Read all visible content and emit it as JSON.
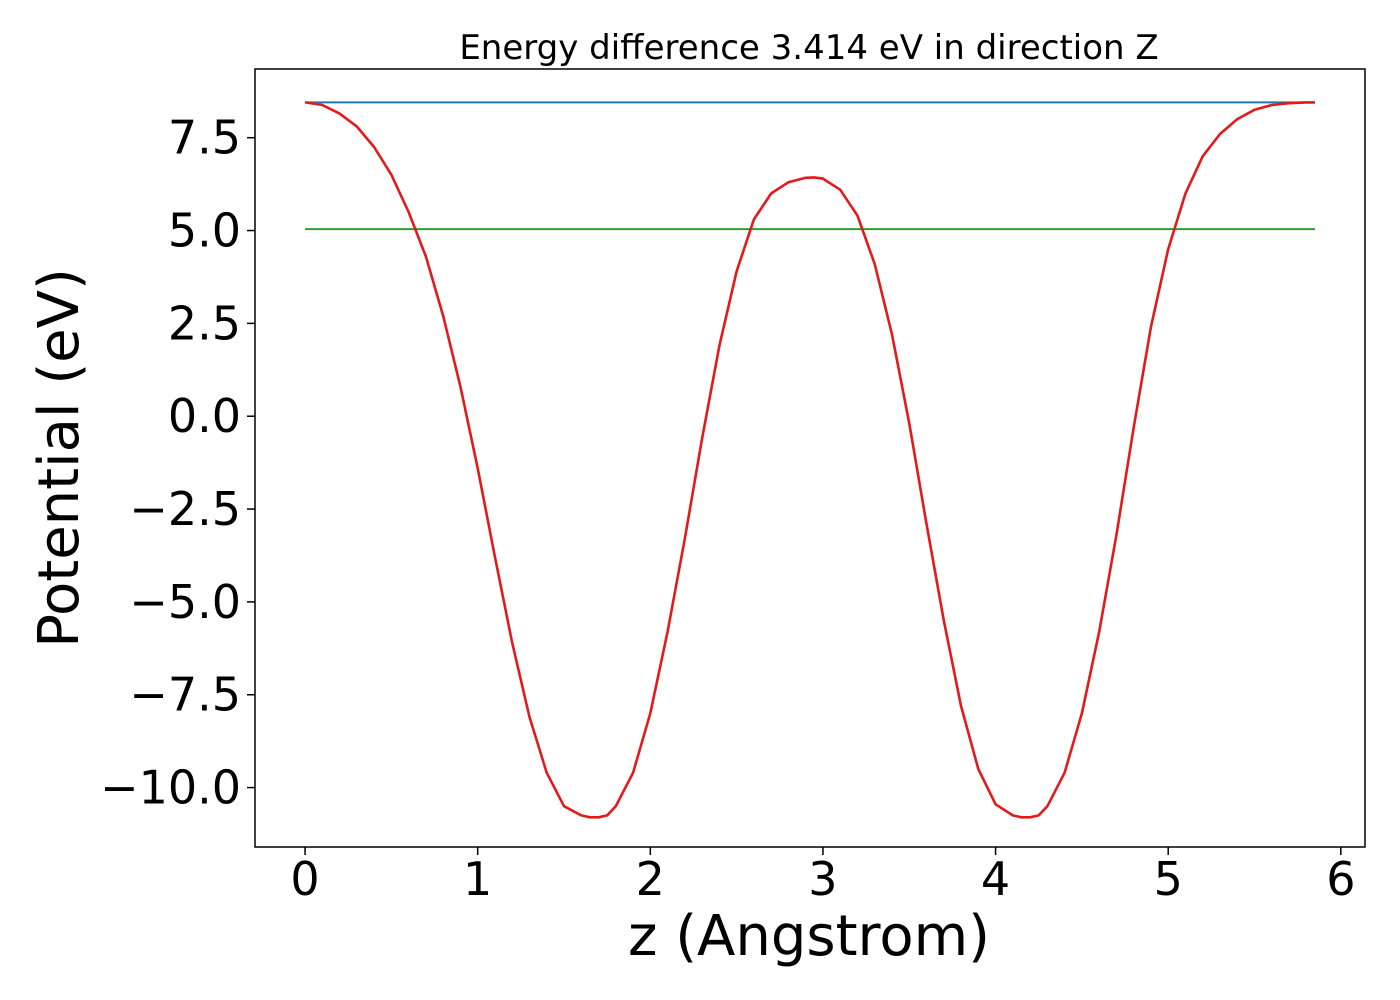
{
  "chart_data": {
    "type": "line",
    "title": "Energy difference 3.414 eV in direction Z",
    "xlabel": "z (Angstrom)",
    "ylabel": "Potential (eV)",
    "xlim": [
      -0.29,
      6.14
    ],
    "ylim": [
      -11.6,
      9.35
    ],
    "xticks": [
      0,
      1,
      2,
      3,
      4,
      5,
      6
    ],
    "xtick_labels": [
      "0",
      "1",
      "2",
      "3",
      "4",
      "5",
      "6"
    ],
    "yticks": [
      -10.0,
      -7.5,
      -5.0,
      -2.5,
      0.0,
      2.5,
      5.0,
      7.5
    ],
    "ytick_labels": [
      "−10.0",
      "−7.5",
      "−5.0",
      "−2.5",
      "0.0",
      "2.5",
      "5.0",
      "7.5"
    ],
    "grid": false,
    "series": [
      {
        "color": "#1f77b4",
        "x": [
          0.0,
          5.85
        ],
        "y": [
          8.45,
          8.45
        ]
      },
      {
        "color": "#2ca02c",
        "x": [
          0.0,
          5.85
        ],
        "y": [
          5.04,
          5.04
        ]
      },
      {
        "color": "#e31a1c",
        "x": [
          0.0,
          0.1,
          0.2,
          0.3,
          0.4,
          0.5,
          0.6,
          0.7,
          0.8,
          0.9,
          1.0,
          1.1,
          1.2,
          1.3,
          1.4,
          1.5,
          1.6,
          1.65,
          1.7,
          1.75,
          1.8,
          1.9,
          2.0,
          2.1,
          2.2,
          2.3,
          2.4,
          2.5,
          2.6,
          2.7,
          2.8,
          2.9,
          2.95,
          3.0,
          3.1,
          3.2,
          3.3,
          3.4,
          3.5,
          3.6,
          3.7,
          3.8,
          3.9,
          4.0,
          4.1,
          4.15,
          4.2,
          4.25,
          4.3,
          4.4,
          4.5,
          4.6,
          4.7,
          4.8,
          4.9,
          5.0,
          5.1,
          5.2,
          5.3,
          5.4,
          5.5,
          5.6,
          5.7,
          5.8,
          5.85
        ],
        "y": [
          8.45,
          8.38,
          8.15,
          7.8,
          7.25,
          6.5,
          5.5,
          4.3,
          2.7,
          0.8,
          -1.4,
          -3.8,
          -6.1,
          -8.1,
          -9.6,
          -10.5,
          -10.75,
          -10.8,
          -10.8,
          -10.75,
          -10.5,
          -9.6,
          -8.0,
          -5.8,
          -3.3,
          -0.6,
          1.9,
          3.9,
          5.3,
          6.0,
          6.3,
          6.42,
          6.43,
          6.4,
          6.1,
          5.4,
          4.1,
          2.2,
          -0.2,
          -2.9,
          -5.5,
          -7.8,
          -9.5,
          -10.45,
          -10.75,
          -10.8,
          -10.8,
          -10.75,
          -10.5,
          -9.6,
          -8.0,
          -5.8,
          -3.2,
          -0.3,
          2.4,
          4.5,
          6.0,
          7.0,
          7.6,
          8.0,
          8.25,
          8.38,
          8.43,
          8.45,
          8.45
        ]
      }
    ]
  }
}
